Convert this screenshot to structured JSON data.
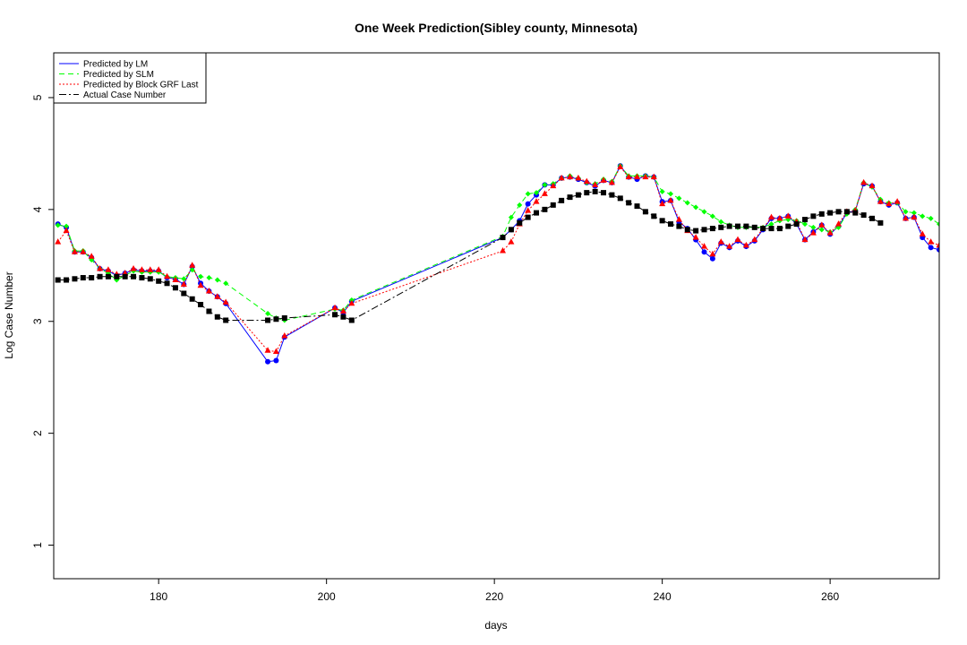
{
  "chart_data": {
    "type": "line",
    "title": "One Week Prediction(Sibley county, Minnesota)",
    "xlabel": "days",
    "ylabel": "Log Case Number",
    "xlim": [
      167.5,
      273
    ],
    "ylim": [
      0.7,
      5.4
    ],
    "xticks": [
      180,
      200,
      220,
      240,
      260
    ],
    "yticks": [
      1,
      2,
      3,
      4,
      5
    ],
    "legend_position": "top-left",
    "colors": {
      "lm": "#0000ff",
      "slm": "#00ff00",
      "grf": "#ff0000",
      "actual": "#000000"
    },
    "series": [
      {
        "key": "lm",
        "name": "Predicted by LM",
        "marker": "circle",
        "dash": "",
        "points": [
          [
            168,
            3.87
          ],
          [
            169,
            3.84
          ],
          [
            170,
            3.62
          ],
          [
            171,
            3.62
          ],
          [
            172,
            3.57
          ],
          [
            173,
            3.47
          ],
          [
            174,
            3.45
          ],
          [
            175,
            3.41
          ],
          [
            176,
            3.43
          ],
          [
            177,
            3.46
          ],
          [
            178,
            3.45
          ],
          [
            179,
            3.45
          ],
          [
            180,
            3.45
          ],
          [
            181,
            3.39
          ],
          [
            182,
            3.38
          ],
          [
            183,
            3.33
          ],
          [
            184,
            3.49
          ],
          [
            185,
            3.34
          ],
          [
            186,
            3.27
          ],
          [
            187,
            3.22
          ],
          [
            188,
            3.16
          ],
          [
            193,
            2.64
          ],
          [
            194,
            2.65
          ],
          [
            195,
            2.86
          ],
          [
            201,
            3.12
          ],
          [
            202,
            3.08
          ],
          [
            203,
            3.18
          ],
          [
            221,
            3.75
          ],
          [
            222,
            3.82
          ],
          [
            223,
            3.9
          ],
          [
            224,
            4.05
          ],
          [
            225,
            4.13
          ],
          [
            226,
            4.22
          ],
          [
            227,
            4.22
          ],
          [
            228,
            4.28
          ],
          [
            229,
            4.29
          ],
          [
            230,
            4.27
          ],
          [
            231,
            4.24
          ],
          [
            232,
            4.21
          ],
          [
            233,
            4.26
          ],
          [
            234,
            4.24
          ],
          [
            235,
            4.39
          ],
          [
            236,
            4.29
          ],
          [
            237,
            4.27
          ],
          [
            238,
            4.3
          ],
          [
            239,
            4.29
          ],
          [
            240,
            4.07
          ],
          [
            241,
            4.08
          ],
          [
            242,
            3.89
          ],
          [
            243,
            3.83
          ],
          [
            244,
            3.73
          ],
          [
            245,
            3.62
          ],
          [
            246,
            3.56
          ],
          [
            247,
            3.7
          ],
          [
            248,
            3.66
          ],
          [
            249,
            3.72
          ],
          [
            250,
            3.67
          ],
          [
            251,
            3.72
          ],
          [
            252,
            3.82
          ],
          [
            253,
            3.92
          ],
          [
            254,
            3.92
          ],
          [
            255,
            3.94
          ],
          [
            256,
            3.87
          ],
          [
            257,
            3.73
          ],
          [
            258,
            3.8
          ],
          [
            259,
            3.86
          ],
          [
            260,
            3.78
          ],
          [
            261,
            3.85
          ],
          [
            262,
            3.97
          ],
          [
            263,
            3.99
          ],
          [
            264,
            4.23
          ],
          [
            265,
            4.21
          ],
          [
            266,
            4.07
          ],
          [
            267,
            4.04
          ],
          [
            268,
            4.06
          ],
          [
            269,
            3.92
          ],
          [
            270,
            3.93
          ],
          [
            271,
            3.75
          ],
          [
            272,
            3.66
          ],
          [
            273,
            3.64
          ]
        ]
      },
      {
        "key": "slm",
        "name": "Predicted by SLM",
        "marker": "diamond",
        "dash": "6 4",
        "points": [
          [
            168,
            3.86
          ],
          [
            169,
            3.85
          ],
          [
            170,
            3.63
          ],
          [
            171,
            3.63
          ],
          [
            172,
            3.55
          ],
          [
            173,
            3.47
          ],
          [
            174,
            3.43
          ],
          [
            175,
            3.37
          ],
          [
            176,
            3.41
          ],
          [
            177,
            3.45
          ],
          [
            178,
            3.44
          ],
          [
            179,
            3.44
          ],
          [
            180,
            3.44
          ],
          [
            181,
            3.4
          ],
          [
            182,
            3.39
          ],
          [
            183,
            3.38
          ],
          [
            184,
            3.46
          ],
          [
            185,
            3.4
          ],
          [
            186,
            3.39
          ],
          [
            187,
            3.37
          ],
          [
            188,
            3.34
          ],
          [
            193,
            3.07
          ],
          [
            194,
            3.03
          ],
          [
            195,
            3.01
          ],
          [
            201,
            3.11
          ],
          [
            202,
            3.1
          ],
          [
            203,
            3.19
          ],
          [
            221,
            3.76
          ],
          [
            222,
            3.93
          ],
          [
            223,
            4.04
          ],
          [
            224,
            4.14
          ],
          [
            225,
            4.15
          ],
          [
            226,
            4.22
          ],
          [
            227,
            4.23
          ],
          [
            228,
            4.28
          ],
          [
            229,
            4.3
          ],
          [
            230,
            4.28
          ],
          [
            231,
            4.24
          ],
          [
            232,
            4.23
          ],
          [
            233,
            4.27
          ],
          [
            234,
            4.25
          ],
          [
            235,
            4.39
          ],
          [
            236,
            4.3
          ],
          [
            237,
            4.3
          ],
          [
            238,
            4.3
          ],
          [
            239,
            4.29
          ],
          [
            240,
            4.16
          ],
          [
            241,
            4.14
          ],
          [
            242,
            4.1
          ],
          [
            243,
            4.06
          ],
          [
            244,
            4.02
          ],
          [
            245,
            3.98
          ],
          [
            246,
            3.94
          ],
          [
            247,
            3.89
          ],
          [
            248,
            3.86
          ],
          [
            249,
            3.84
          ],
          [
            250,
            3.84
          ],
          [
            251,
            3.84
          ],
          [
            252,
            3.84
          ],
          [
            253,
            3.87
          ],
          [
            254,
            3.9
          ],
          [
            255,
            3.91
          ],
          [
            256,
            3.9
          ],
          [
            257,
            3.87
          ],
          [
            258,
            3.84
          ],
          [
            259,
            3.82
          ],
          [
            260,
            3.8
          ],
          [
            261,
            3.84
          ],
          [
            262,
            3.96
          ],
          [
            263,
            4.0
          ],
          [
            264,
            4.24
          ],
          [
            265,
            4.2
          ],
          [
            266,
            4.09
          ],
          [
            267,
            4.06
          ],
          [
            268,
            4.06
          ],
          [
            269,
            3.98
          ],
          [
            270,
            3.97
          ],
          [
            271,
            3.94
          ],
          [
            272,
            3.92
          ],
          [
            273,
            3.87
          ]
        ]
      },
      {
        "key": "grf",
        "name": "Predicted by Block GRF Last",
        "marker": "triangle",
        "dash": "2 2",
        "points": [
          [
            168,
            3.71
          ],
          [
            169,
            3.81
          ],
          [
            170,
            3.62
          ],
          [
            171,
            3.62
          ],
          [
            172,
            3.58
          ],
          [
            173,
            3.47
          ],
          [
            174,
            3.46
          ],
          [
            175,
            3.42
          ],
          [
            176,
            3.43
          ],
          [
            177,
            3.47
          ],
          [
            178,
            3.46
          ],
          [
            179,
            3.46
          ],
          [
            180,
            3.46
          ],
          [
            181,
            3.4
          ],
          [
            182,
            3.37
          ],
          [
            183,
            3.33
          ],
          [
            184,
            3.5
          ],
          [
            185,
            3.32
          ],
          [
            186,
            3.27
          ],
          [
            187,
            3.22
          ],
          [
            188,
            3.17
          ],
          [
            193,
            2.74
          ],
          [
            194,
            2.73
          ],
          [
            195,
            2.87
          ],
          [
            201,
            3.12
          ],
          [
            202,
            3.09
          ],
          [
            203,
            3.16
          ],
          [
            221,
            3.63
          ],
          [
            222,
            3.71
          ],
          [
            223,
            3.87
          ],
          [
            224,
            3.99
          ],
          [
            225,
            4.07
          ],
          [
            226,
            4.14
          ],
          [
            227,
            4.21
          ],
          [
            228,
            4.28
          ],
          [
            229,
            4.29
          ],
          [
            230,
            4.28
          ],
          [
            231,
            4.25
          ],
          [
            232,
            4.22
          ],
          [
            233,
            4.26
          ],
          [
            234,
            4.24
          ],
          [
            235,
            4.38
          ],
          [
            236,
            4.29
          ],
          [
            237,
            4.29
          ],
          [
            238,
            4.29
          ],
          [
            239,
            4.29
          ],
          [
            240,
            4.05
          ],
          [
            241,
            4.08
          ],
          [
            242,
            3.91
          ],
          [
            243,
            3.81
          ],
          [
            244,
            3.75
          ],
          [
            245,
            3.67
          ],
          [
            246,
            3.6
          ],
          [
            247,
            3.71
          ],
          [
            248,
            3.67
          ],
          [
            249,
            3.73
          ],
          [
            250,
            3.68
          ],
          [
            251,
            3.73
          ],
          [
            252,
            3.83
          ],
          [
            253,
            3.93
          ],
          [
            254,
            3.92
          ],
          [
            255,
            3.94
          ],
          [
            256,
            3.89
          ],
          [
            257,
            3.73
          ],
          [
            258,
            3.79
          ],
          [
            259,
            3.86
          ],
          [
            260,
            3.79
          ],
          [
            261,
            3.87
          ],
          [
            262,
            3.98
          ],
          [
            263,
            3.99
          ],
          [
            264,
            4.24
          ],
          [
            265,
            4.21
          ],
          [
            266,
            4.07
          ],
          [
            267,
            4.05
          ],
          [
            268,
            4.07
          ],
          [
            269,
            3.92
          ],
          [
            270,
            3.93
          ],
          [
            271,
            3.78
          ],
          [
            272,
            3.71
          ],
          [
            273,
            3.68
          ]
        ]
      },
      {
        "key": "actual",
        "name": "Actual Case Number",
        "marker": "square",
        "dash": "8 3 2 3",
        "points": [
          [
            168,
            3.37
          ],
          [
            169,
            3.37
          ],
          [
            170,
            3.38
          ],
          [
            171,
            3.39
          ],
          [
            172,
            3.39
          ],
          [
            173,
            3.4
          ],
          [
            174,
            3.4
          ],
          [
            175,
            3.4
          ],
          [
            176,
            3.4
          ],
          [
            177,
            3.4
          ],
          [
            178,
            3.39
          ],
          [
            179,
            3.38
          ],
          [
            180,
            3.36
          ],
          [
            181,
            3.34
          ],
          [
            182,
            3.3
          ],
          [
            183,
            3.25
          ],
          [
            184,
            3.2
          ],
          [
            185,
            3.15
          ],
          [
            186,
            3.09
          ],
          [
            187,
            3.04
          ],
          [
            188,
            3.01
          ],
          [
            193,
            3.01
          ],
          [
            194,
            3.02
          ],
          [
            195,
            3.03
          ],
          [
            201,
            3.06
          ],
          [
            202,
            3.04
          ],
          [
            203,
            3.01
          ],
          [
            221,
            3.75
          ],
          [
            222,
            3.82
          ],
          [
            223,
            3.88
          ],
          [
            224,
            3.93
          ],
          [
            225,
            3.97
          ],
          [
            226,
            4.0
          ],
          [
            227,
            4.04
          ],
          [
            228,
            4.08
          ],
          [
            229,
            4.11
          ],
          [
            230,
            4.13
          ],
          [
            231,
            4.15
          ],
          [
            232,
            4.16
          ],
          [
            233,
            4.15
          ],
          [
            234,
            4.13
          ],
          [
            235,
            4.1
          ],
          [
            236,
            4.06
          ],
          [
            237,
            4.03
          ],
          [
            238,
            3.98
          ],
          [
            239,
            3.94
          ],
          [
            240,
            3.9
          ],
          [
            241,
            3.87
          ],
          [
            242,
            3.85
          ],
          [
            243,
            3.82
          ],
          [
            244,
            3.81
          ],
          [
            245,
            3.82
          ],
          [
            246,
            3.83
          ],
          [
            247,
            3.84
          ],
          [
            248,
            3.85
          ],
          [
            249,
            3.85
          ],
          [
            250,
            3.85
          ],
          [
            251,
            3.84
          ],
          [
            252,
            3.83
          ],
          [
            253,
            3.83
          ],
          [
            254,
            3.83
          ],
          [
            255,
            3.85
          ],
          [
            256,
            3.87
          ],
          [
            257,
            3.91
          ],
          [
            258,
            3.94
          ],
          [
            259,
            3.96
          ],
          [
            260,
            3.97
          ],
          [
            261,
            3.98
          ],
          [
            262,
            3.98
          ],
          [
            263,
            3.97
          ],
          [
            264,
            3.95
          ],
          [
            265,
            3.92
          ],
          [
            266,
            3.88
          ]
        ]
      }
    ]
  }
}
